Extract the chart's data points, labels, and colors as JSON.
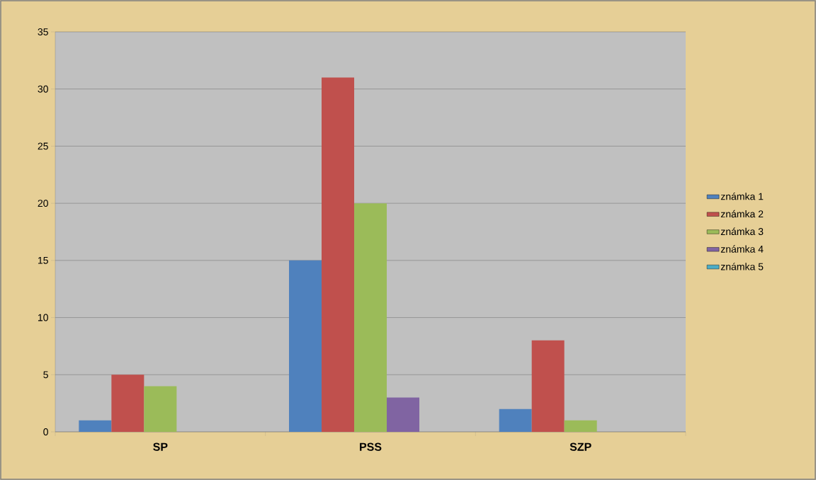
{
  "chart_data": {
    "type": "bar",
    "categories": [
      "SP",
      "PSS",
      "SZP"
    ],
    "series": [
      {
        "name": "známka 1",
        "color": "#4f81bd",
        "values": [
          1,
          15,
          2
        ]
      },
      {
        "name": "známka 2",
        "color": "#c0504d",
        "values": [
          5,
          31,
          8
        ]
      },
      {
        "name": "známka 3",
        "color": "#9bbb59",
        "values": [
          4,
          20,
          1
        ]
      },
      {
        "name": "známka 4",
        "color": "#8064a2",
        "values": [
          0,
          3,
          0
        ]
      },
      {
        "name": "známka 5",
        "color": "#4bacc6",
        "values": [
          0,
          0,
          0
        ]
      }
    ],
    "ylim": [
      0,
      35
    ],
    "yticks": [
      0,
      5,
      10,
      15,
      20,
      25,
      30,
      35
    ],
    "grid": "y",
    "legend": "right"
  }
}
